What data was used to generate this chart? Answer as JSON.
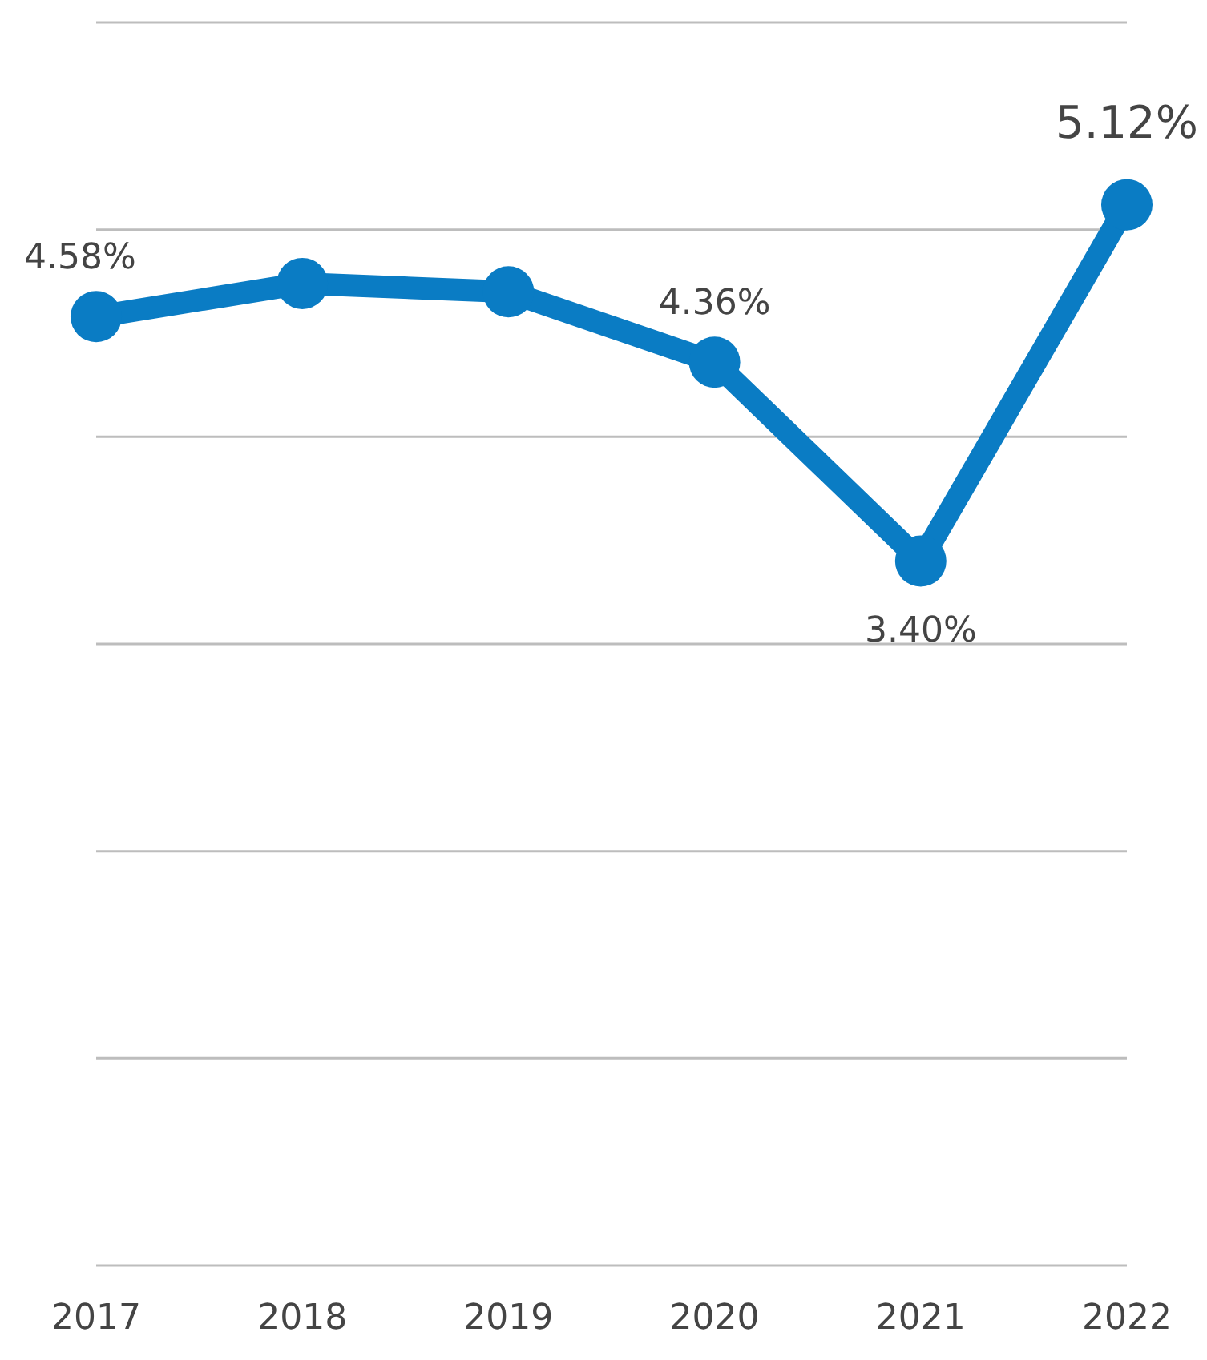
{
  "chart_data": {
    "type": "line",
    "categories": [
      "2017",
      "2018",
      "2019",
      "2020",
      "2021",
      "2022"
    ],
    "series": [
      {
        "color": "#0a7cc4",
        "values": [
          4.58,
          4.74,
          4.7,
          4.36,
          3.4,
          5.12
        ],
        "value_labels": [
          "4.58%",
          null,
          null,
          "4.36%",
          "3.40%",
          "5.12%"
        ]
      }
    ],
    "ylim": [
      0,
      6
    ],
    "yticks": [
      {
        "value": 0,
        "label": null
      },
      {
        "value": 1,
        "label": null
      },
      {
        "value": 2,
        "label": null
      },
      {
        "value": 3,
        "label": null
      },
      {
        "value": 4,
        "label": null
      },
      {
        "value": 5,
        "label": null
      },
      {
        "value": 6,
        "label": null
      }
    ],
    "tick_labels": "x",
    "grid": "y",
    "marker": "circle",
    "line_style": "solid",
    "legend": false
  }
}
